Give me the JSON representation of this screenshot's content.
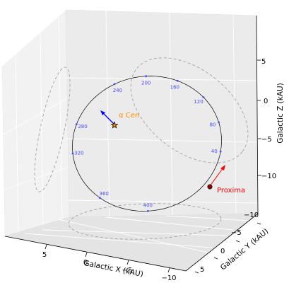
{
  "chart_data": {
    "type": "scatter",
    "projection": "3d",
    "grid": true,
    "xlabel": "Galactic X (kAU)",
    "ylabel": "Galactic Y (kAU)",
    "zlabel": "Galactic Z (kAU)",
    "x_ticks": [
      "5",
      "0",
      "−5",
      "−10"
    ],
    "y_ticks": [
      "−10",
      "−5",
      "0",
      "5"
    ],
    "z_ticks": [
      "5",
      "0",
      "−5",
      "−10"
    ],
    "orbit_time_labels": [
      "40",
      "80",
      "120",
      "160",
      "200",
      "240",
      "280",
      "320",
      "360",
      "400"
    ],
    "objects": [
      {
        "name": "α Cen",
        "marker": "star",
        "color": "#ff8c00"
      },
      {
        "name": "Proxima",
        "marker": "circle",
        "color": "#ff0000"
      }
    ],
    "colors": {
      "orbit": "#000000",
      "projections": "#999999",
      "time_markers": "#4a4aff",
      "alpha_cen": "#ff8c00",
      "alpha_cen_velocity": "#0000ff",
      "proxima": "#ff0000",
      "proxima_velocity": "#ff0000"
    }
  }
}
